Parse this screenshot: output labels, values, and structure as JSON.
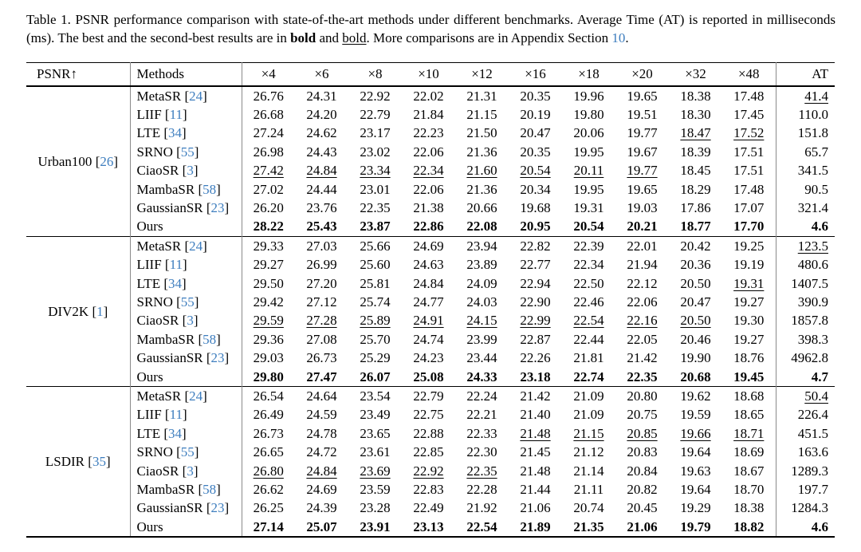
{
  "caption": {
    "parts": [
      {
        "t": "Table 1.  PSNR performance comparison with state-of-the-art methods under different benchmarks.  Average Time (AT) is reported in milliseconds (ms). The best and the second-best results are in ",
        "s": "normal"
      },
      {
        "t": "bold",
        "s": "bold"
      },
      {
        "t": " and ",
        "s": "normal"
      },
      {
        "t": "bold",
        "s": "underline"
      },
      {
        "t": ". More comparisons are in Appendix Section ",
        "s": "normal"
      },
      {
        "t": "10",
        "s": "link"
      },
      {
        "t": ".",
        "s": "normal"
      }
    ]
  },
  "colors": {
    "link_blue": "#3d7dbe",
    "rule_gray": "#8a8a8a"
  },
  "table": {
    "cite_brackets": [
      "[",
      "]"
    ],
    "headers": {
      "psnr": "PSNR↑",
      "methods": "Methods",
      "scales": [
        "×4",
        "×6",
        "×8",
        "×10",
        "×12",
        "×16",
        "×18",
        "×20",
        "×32",
        "×48"
      ],
      "at": "AT"
    },
    "groups": [
      {
        "benchmark": "Urban100",
        "cite": "26",
        "rows": [
          {
            "method": "MetaSR",
            "cite": "24",
            "values": [
              "26.76",
              "24.31",
              "22.92",
              "22.02",
              "21.31",
              "20.35",
              "19.96",
              "19.65",
              "18.38",
              "17.48"
            ],
            "at": "41.4",
            "underline": [],
            "at_underline": true,
            "bold": false
          },
          {
            "method": "LIIF",
            "cite": "11",
            "values": [
              "26.68",
              "24.20",
              "22.79",
              "21.84",
              "21.15",
              "20.19",
              "19.80",
              "19.51",
              "18.30",
              "17.45"
            ],
            "at": "110.0",
            "underline": [],
            "at_underline": false,
            "bold": false
          },
          {
            "method": "LTE",
            "cite": "34",
            "values": [
              "27.24",
              "24.62",
              "23.17",
              "22.23",
              "21.50",
              "20.47",
              "20.06",
              "19.77",
              "18.47",
              "17.52"
            ],
            "at": "151.8",
            "underline": [
              8,
              9
            ],
            "at_underline": false,
            "bold": false
          },
          {
            "method": "SRNO",
            "cite": "55",
            "values": [
              "26.98",
              "24.43",
              "23.02",
              "22.06",
              "21.36",
              "20.35",
              "19.95",
              "19.67",
              "18.39",
              "17.51"
            ],
            "at": "65.7",
            "underline": [],
            "at_underline": false,
            "bold": false
          },
          {
            "method": "CiaoSR",
            "cite": "3",
            "values": [
              "27.42",
              "24.84",
              "23.34",
              "22.34",
              "21.60",
              "20.54",
              "20.11",
              "19.77",
              "18.45",
              "17.51"
            ],
            "at": "341.5",
            "underline": [
              0,
              1,
              2,
              3,
              4,
              5,
              6,
              7
            ],
            "at_underline": false,
            "bold": false
          },
          {
            "method": "MambaSR",
            "cite": "58",
            "values": [
              "27.02",
              "24.44",
              "23.01",
              "22.06",
              "21.36",
              "20.34",
              "19.95",
              "19.65",
              "18.29",
              "17.48"
            ],
            "at": "90.5",
            "underline": [],
            "at_underline": false,
            "bold": false
          },
          {
            "method": "GaussianSR",
            "cite": "23",
            "values": [
              "26.20",
              "23.76",
              "22.35",
              "21.38",
              "20.66",
              "19.68",
              "19.31",
              "19.03",
              "17.86",
              "17.07"
            ],
            "at": "321.4",
            "underline": [],
            "at_underline": false,
            "bold": false
          },
          {
            "method": "Ours",
            "cite": null,
            "values": [
              "28.22",
              "25.43",
              "23.87",
              "22.86",
              "22.08",
              "20.95",
              "20.54",
              "20.21",
              "18.77",
              "17.70"
            ],
            "at": "4.6",
            "underline": [],
            "at_underline": false,
            "bold": true
          }
        ]
      },
      {
        "benchmark": "DIV2K",
        "cite": "1",
        "rows": [
          {
            "method": "MetaSR",
            "cite": "24",
            "values": [
              "29.33",
              "27.03",
              "25.66",
              "24.69",
              "23.94",
              "22.82",
              "22.39",
              "22.01",
              "20.42",
              "19.25"
            ],
            "at": "123.5",
            "underline": [],
            "at_underline": true,
            "bold": false
          },
          {
            "method": "LIIF",
            "cite": "11",
            "values": [
              "29.27",
              "26.99",
              "25.60",
              "24.63",
              "23.89",
              "22.77",
              "22.34",
              "21.94",
              "20.36",
              "19.19"
            ],
            "at": "480.6",
            "underline": [],
            "at_underline": false,
            "bold": false
          },
          {
            "method": "LTE",
            "cite": "34",
            "values": [
              "29.50",
              "27.20",
              "25.81",
              "24.84",
              "24.09",
              "22.94",
              "22.50",
              "22.12",
              "20.50",
              "19.31"
            ],
            "at": "1407.5",
            "underline": [
              9
            ],
            "at_underline": false,
            "bold": false
          },
          {
            "method": "SRNO",
            "cite": "55",
            "values": [
              "29.42",
              "27.12",
              "25.74",
              "24.77",
              "24.03",
              "22.90",
              "22.46",
              "22.06",
              "20.47",
              "19.27"
            ],
            "at": "390.9",
            "underline": [],
            "at_underline": false,
            "bold": false
          },
          {
            "method": "CiaoSR",
            "cite": "3",
            "values": [
              "29.59",
              "27.28",
              "25.89",
              "24.91",
              "24.15",
              "22.99",
              "22.54",
              "22.16",
              "20.50",
              "19.30"
            ],
            "at": "1857.8",
            "underline": [
              0,
              1,
              2,
              3,
              4,
              5,
              6,
              7,
              8
            ],
            "at_underline": false,
            "bold": false
          },
          {
            "method": "MambaSR",
            "cite": "58",
            "values": [
              "29.36",
              "27.08",
              "25.70",
              "24.74",
              "23.99",
              "22.87",
              "22.44",
              "22.05",
              "20.46",
              "19.27"
            ],
            "at": "398.3",
            "underline": [],
            "at_underline": false,
            "bold": false
          },
          {
            "method": "GaussianSR",
            "cite": "23",
            "values": [
              "29.03",
              "26.73",
              "25.29",
              "24.23",
              "23.44",
              "22.26",
              "21.81",
              "21.42",
              "19.90",
              "18.76"
            ],
            "at": "4962.8",
            "underline": [],
            "at_underline": false,
            "bold": false
          },
          {
            "method": "Ours",
            "cite": null,
            "values": [
              "29.80",
              "27.47",
              "26.07",
              "25.08",
              "24.33",
              "23.18",
              "22.74",
              "22.35",
              "20.68",
              "19.45"
            ],
            "at": "4.7",
            "underline": [],
            "at_underline": false,
            "bold": true
          }
        ]
      },
      {
        "benchmark": "LSDIR",
        "cite": "35",
        "rows": [
          {
            "method": "MetaSR",
            "cite": "24",
            "values": [
              "26.54",
              "24.64",
              "23.54",
              "22.79",
              "22.24",
              "21.42",
              "21.09",
              "20.80",
              "19.62",
              "18.68"
            ],
            "at": "50.4",
            "underline": [],
            "at_underline": true,
            "bold": false
          },
          {
            "method": "LIIF",
            "cite": "11",
            "values": [
              "26.49",
              "24.59",
              "23.49",
              "22.75",
              "22.21",
              "21.40",
              "21.09",
              "20.75",
              "19.59",
              "18.65"
            ],
            "at": "226.4",
            "underline": [],
            "at_underline": false,
            "bold": false
          },
          {
            "method": "LTE",
            "cite": "34",
            "values": [
              "26.73",
              "24.78",
              "23.65",
              "22.88",
              "22.33",
              "21.48",
              "21.15",
              "20.85",
              "19.66",
              "18.71"
            ],
            "at": "451.5",
            "underline": [
              5,
              6,
              7,
              8,
              9
            ],
            "at_underline": false,
            "bold": false
          },
          {
            "method": "SRNO",
            "cite": "55",
            "values": [
              "26.65",
              "24.72",
              "23.61",
              "22.85",
              "22.30",
              "21.45",
              "21.12",
              "20.83",
              "19.64",
              "18.69"
            ],
            "at": "163.6",
            "underline": [],
            "at_underline": false,
            "bold": false
          },
          {
            "method": "CiaoSR",
            "cite": "3",
            "values": [
              "26.80",
              "24.84",
              "23.69",
              "22.92",
              "22.35",
              "21.48",
              "21.14",
              "20.84",
              "19.63",
              "18.67"
            ],
            "at": "1289.3",
            "underline": [
              0,
              1,
              2,
              3,
              4
            ],
            "at_underline": false,
            "bold": false
          },
          {
            "method": "MambaSR",
            "cite": "58",
            "values": [
              "26.62",
              "24.69",
              "23.59",
              "22.83",
              "22.28",
              "21.44",
              "21.11",
              "20.82",
              "19.64",
              "18.70"
            ],
            "at": "197.7",
            "underline": [],
            "at_underline": false,
            "bold": false
          },
          {
            "method": "GaussianSR",
            "cite": "23",
            "values": [
              "26.25",
              "24.39",
              "23.28",
              "22.49",
              "21.92",
              "21.06",
              "20.74",
              "20.45",
              "19.29",
              "18.38"
            ],
            "at": "1284.3",
            "underline": [],
            "at_underline": false,
            "bold": false
          },
          {
            "method": "Ours",
            "cite": null,
            "values": [
              "27.14",
              "25.07",
              "23.91",
              "23.13",
              "22.54",
              "21.89",
              "21.35",
              "21.06",
              "19.79",
              "18.82"
            ],
            "at": "4.6",
            "underline": [],
            "at_underline": false,
            "bold": true
          }
        ]
      }
    ]
  }
}
